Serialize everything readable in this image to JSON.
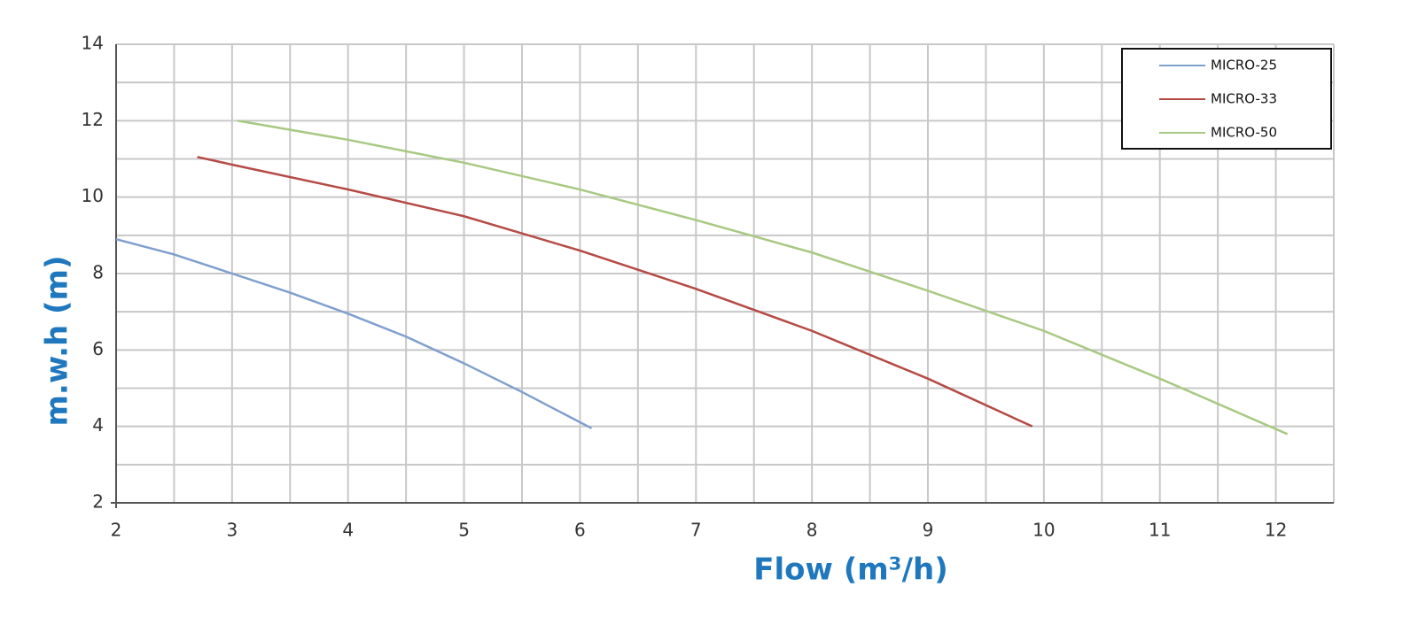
{
  "chart_data": {
    "type": "line",
    "x_label": "Flow (m³/h)",
    "y_label": "m.w.h (m)",
    "xlim": [
      2,
      12.5
    ],
    "xticks": [
      2,
      3,
      4,
      5,
      6,
      7,
      8,
      9,
      10,
      11,
      12
    ],
    "xminorticks": [
      2.5,
      3.5,
      4.5,
      5.5,
      6.5,
      7.5,
      8.5,
      9.5,
      10.5,
      11.5,
      12.5
    ],
    "ylim": [
      2,
      14
    ],
    "yticks": [
      2,
      4,
      6,
      8,
      10,
      12,
      14
    ],
    "yminorticks": [
      3,
      5,
      7,
      9,
      11,
      13
    ],
    "grid": true,
    "legend": "upper right",
    "series": [
      {
        "name": "MICRO-25",
        "color": "#7f9fcf",
        "x": [
          2,
          2.5,
          3,
          3.5,
          4,
          4.5,
          5,
          5.5,
          6.1
        ],
        "values": [
          8.9,
          8.5,
          8.0,
          7.5,
          6.95,
          6.35,
          5.65,
          4.9,
          3.95
        ]
      },
      {
        "name": "MICRO-33",
        "color": "#b54a45",
        "x": [
          2.7,
          3,
          4,
          5,
          6,
          7,
          8,
          9,
          9.9
        ],
        "values": [
          11.05,
          10.85,
          10.2,
          9.5,
          8.6,
          7.6,
          6.5,
          5.25,
          4.0
        ]
      },
      {
        "name": "MICRO-50",
        "color": "#a8c983",
        "x": [
          3.05,
          4,
          5,
          6,
          7,
          8,
          9,
          10,
          11,
          12.1
        ],
        "values": [
          12.0,
          11.5,
          10.9,
          10.2,
          9.4,
          8.55,
          7.55,
          6.5,
          5.25,
          3.8
        ]
      }
    ]
  }
}
